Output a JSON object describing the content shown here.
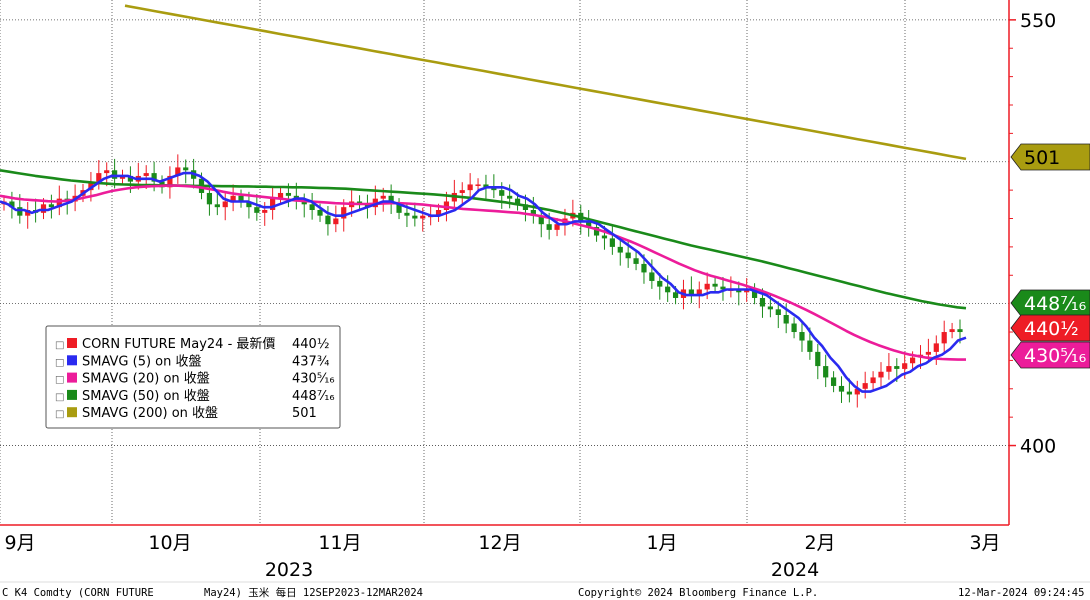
{
  "chart_data": {
    "type": "candlestick",
    "y_axis": {
      "ticks": [
        400,
        550
      ],
      "ylim": [
        372,
        557
      ]
    },
    "x_axis": {
      "month_labels": [
        "9月",
        "10月",
        "11月",
        "12月",
        "1月",
        "2月",
        "3月"
      ],
      "year_labels": [
        "2023",
        "2024"
      ]
    },
    "legend": [
      {
        "label": "CORN FUTURE May24 - 最新價",
        "value": "440½",
        "color": "#ee1c25",
        "box": "□"
      },
      {
        "label": "SMAVG (5)  on 收盤",
        "value": "437¾",
        "color": "#2a2af0",
        "box": "□"
      },
      {
        "label": "SMAVG (20)  on 收盤",
        "value": "430⁵⁄₁₆",
        "color": "#ec1c9a",
        "box": "□"
      },
      {
        "label": "SMAVG (50)  on 收盤",
        "value": "448⁷⁄₁₆",
        "color": "#1a8a1a",
        "box": "□"
      },
      {
        "label": "SMAVG (200)  on 收盤",
        "value": "501",
        "color": "#a99c10",
        "box": "□"
      }
    ],
    "value_tags": [
      {
        "text": "501",
        "price": 501,
        "bg": "#a99c10",
        "fg": "#000000"
      },
      {
        "text": "448⁷⁄₁₆",
        "price": 448.44,
        "bg": "#1a8a1a",
        "fg": "#ffffff"
      },
      {
        "text": "440½",
        "price": 440.5,
        "bg": "#ee1c25",
        "fg": "#ffffff"
      },
      {
        "text": "430⁵⁄₁₆",
        "price": 430.31,
        "bg": "#ec1c9a",
        "fg": "#ffffff"
      }
    ],
    "candles_close": [
      486,
      484,
      481,
      483,
      482,
      485,
      484,
      487,
      486,
      488,
      490,
      493,
      496,
      497,
      494,
      495,
      493,
      495,
      496,
      493,
      491,
      495,
      498,
      497,
      494,
      489,
      485,
      484,
      486,
      488,
      486,
      484,
      482,
      483,
      487,
      489,
      488,
      486,
      485,
      483,
      481,
      478,
      480,
      484,
      486,
      485,
      484,
      487,
      488,
      485,
      482,
      481,
      480,
      481,
      481,
      483,
      486,
      489,
      490,
      492,
      492,
      491,
      490,
      488,
      487,
      485,
      483,
      481,
      478,
      476,
      478,
      480,
      482,
      479,
      477,
      474,
      473,
      470,
      468,
      466,
      464,
      461,
      458,
      456,
      454,
      452,
      455,
      453,
      455,
      457,
      456,
      455,
      455,
      454,
      455,
      452,
      449,
      448,
      446,
      443,
      440,
      437,
      433,
      428,
      424,
      421,
      419,
      418,
      420,
      422,
      424,
      426,
      428,
      427,
      429,
      431,
      432,
      433,
      436,
      440,
      441,
      440
    ],
    "sma5": [
      486,
      485,
      483,
      483,
      482,
      483,
      483,
      484,
      485,
      486,
      488,
      490,
      492,
      494,
      495,
      495,
      495,
      494,
      494,
      494,
      493,
      494,
      495,
      496,
      496,
      495,
      493,
      490,
      487,
      486,
      486,
      486,
      485,
      484,
      484,
      485,
      486,
      487,
      487,
      486,
      484,
      482,
      481,
      481,
      482,
      483,
      484,
      485,
      486,
      486,
      485,
      484,
      483,
      482,
      481,
      481,
      482,
      483,
      485,
      487,
      490,
      491,
      491,
      491,
      490,
      488,
      487,
      485,
      482,
      480,
      478,
      478,
      479,
      479,
      479,
      478,
      476,
      474,
      472,
      470,
      468,
      465,
      462,
      459,
      457,
      454,
      453,
      453,
      453,
      454,
      454,
      455,
      455,
      455,
      455,
      454,
      453,
      451,
      449,
      447,
      445,
      442,
      438,
      435,
      431,
      428,
      424,
      421,
      419,
      419,
      420,
      421,
      423,
      425,
      426,
      428,
      429,
      431,
      432,
      434,
      437,
      438
    ],
    "sma20": [
      488,
      487.5,
      487,
      486.7,
      486.5,
      486.3,
      486.1,
      486,
      486.2,
      486.5,
      487,
      487.6,
      488.2,
      489,
      489.7,
      490.2,
      490.6,
      491,
      491.2,
      491.4,
      491.5,
      491.6,
      491.6,
      491.5,
      491.3,
      491,
      490.5,
      490,
      489.4,
      488.9,
      488.5,
      488.2,
      487.9,
      487.6,
      487.3,
      487,
      486.7,
      486.4,
      486.2,
      486,
      485.8,
      485.6,
      485.4,
      485.3,
      485.2,
      485.1,
      485.1,
      485.2,
      485.3,
      485.4,
      485.4,
      485.3,
      485.1,
      484.9,
      484.6,
      484.3,
      484,
      483.7,
      483.4,
      483.2,
      483,
      482.8,
      482.6,
      482.4,
      482.2,
      482,
      481.6,
      481.2,
      480.7,
      480.1,
      479.5,
      478.9,
      478.2,
      477.5,
      476.8,
      476,
      475.1,
      474.1,
      473,
      471.9,
      470.7,
      469.4,
      468.1,
      466.8,
      465.5,
      464.2,
      463,
      461.8,
      460.8,
      459.9,
      459.1,
      458.3,
      457.5,
      456.7,
      455.8,
      454.9,
      453.9,
      452.8,
      451.6,
      450.4,
      449.1,
      447.8,
      446.4,
      444.9,
      443.4,
      441.9,
      440.4,
      439,
      437.7,
      436.5,
      435.4,
      434.4,
      433.5,
      432.7,
      432,
      431.5,
      431,
      430.7,
      430.5,
      430.4,
      430.3,
      430.3
    ],
    "sma50": [
      497,
      496.5,
      496,
      495.5,
      495,
      494.6,
      494.2,
      493.8,
      493.4,
      493.1,
      492.8,
      492.5,
      492.3,
      492.1,
      492,
      491.9,
      491.8,
      491.8,
      491.7,
      491.7,
      491.6,
      491.6,
      491.5,
      491.5,
      491.5,
      491.4,
      491.4,
      491.3,
      491.3,
      491.2,
      491.2,
      491.1,
      491.1,
      491,
      491,
      490.9,
      490.8,
      490.7,
      490.6,
      490.5,
      490.3,
      490.1,
      489.9,
      489.7,
      489.5,
      489.3,
      489.1,
      488.9,
      488.7,
      488.5,
      488.2,
      487.9,
      487.6,
      487.3,
      486.9,
      486.5,
      486.1,
      485.7,
      485.2,
      484.7,
      484.2,
      483.6,
      483,
      482.3,
      481.6,
      480.9,
      480.1,
      479.3,
      478.5,
      477.7,
      476.9,
      476.1,
      475.3,
      474.5,
      473.7,
      472.9,
      472.1,
      471.3,
      470.5,
      469.8,
      469.1,
      468.4,
      467.7,
      467,
      466.3,
      465.6,
      464.9,
      464.1,
      463.3,
      462.5,
      461.7,
      460.9,
      460.1,
      459.3,
      458.5,
      457.7,
      456.9,
      456.1,
      455.3,
      454.5,
      453.7,
      453,
      452.3,
      451.6,
      450.9,
      450.3,
      449.7,
      449.2,
      448.7,
      448.4
    ],
    "sma200": [
      555,
      554,
      553,
      552,
      551,
      550,
      549,
      548,
      547,
      546,
      545,
      544,
      543,
      542,
      541,
      540,
      539,
      538,
      537,
      536,
      535,
      534,
      533,
      532,
      531,
      530,
      529,
      528,
      527,
      526,
      525,
      524,
      523,
      522,
      521,
      520,
      519,
      518,
      517,
      516,
      515,
      514,
      513,
      512,
      511,
      510,
      509,
      508,
      507,
      506,
      505,
      504,
      503,
      502,
      501
    ]
  },
  "footer": {
    "ticker": "C K4 Comdty (CORN FUTURE",
    "desc": "May24) 玉米  每日 12SEP2023-12MAR2024",
    "copyright": "Copyright© 2024 Bloomberg Finance L.P.",
    "timestamp": "12-Mar-2024 09:24:45"
  }
}
